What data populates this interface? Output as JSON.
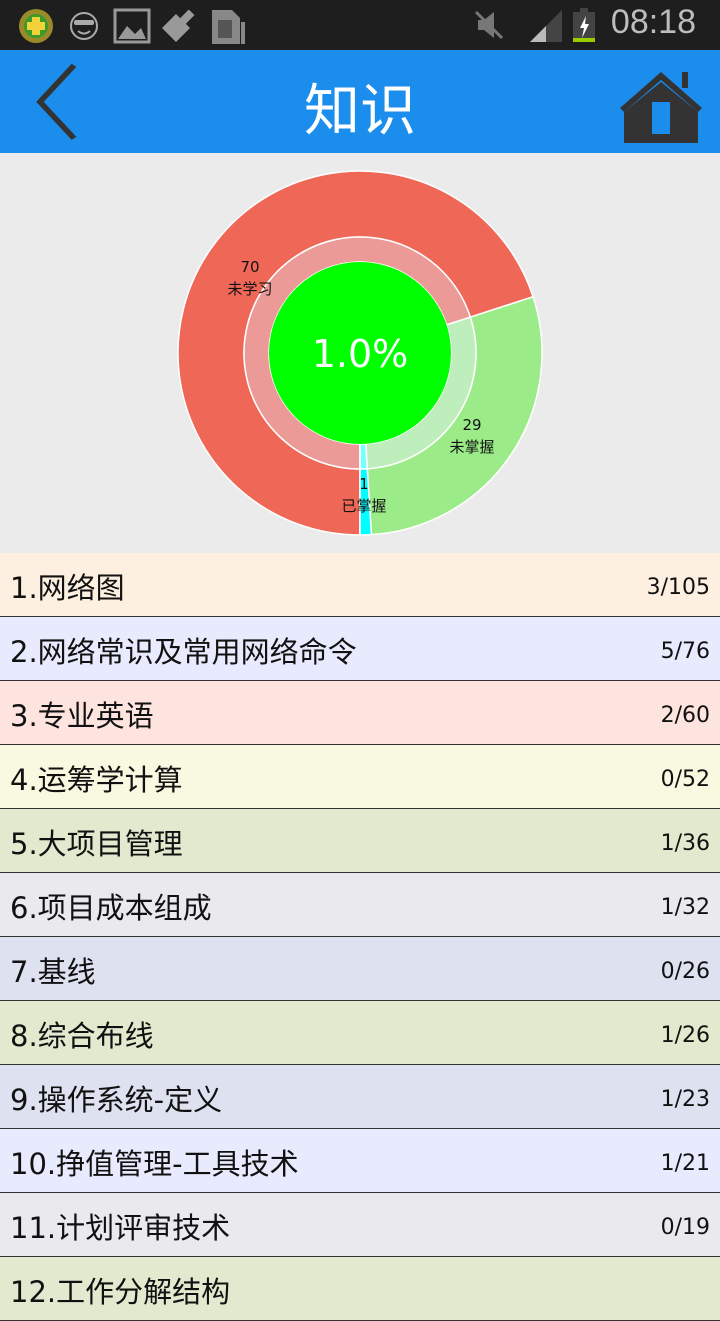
{
  "status_bar": {
    "time": "08:18",
    "icons": [
      "360-security-icon",
      "sunglasses-face-icon",
      "image-icon",
      "brush-icon",
      "sim-card-icon",
      "mute-icon",
      "signal-icon",
      "battery-charging-icon"
    ]
  },
  "header": {
    "title": "知识",
    "back_icon": "chevron-left-icon",
    "home_icon": "home-icon"
  },
  "chart": {
    "center_label": "1.0%",
    "segments": [
      {
        "value": 70,
        "label": "未学习",
        "color": "#ef6857",
        "inner_color": "#ec9a98"
      },
      {
        "value": 29,
        "label": "未掌握",
        "color": "#9bec89",
        "inner_color": "#bdeebb"
      },
      {
        "value": 1,
        "label": "已掌握",
        "color": "#00ffff",
        "inner_color": "#77ffff"
      }
    ],
    "center_color": "#00ff00"
  },
  "list": [
    {
      "name": "1.网络图",
      "count": "3/105",
      "bg": "#fef0e1"
    },
    {
      "name": "2.网络常识及常用网络命令",
      "count": "5/76",
      "bg": "#e8eafd"
    },
    {
      "name": "3.专业英语",
      "count": "2/60",
      "bg": "#fde4df"
    },
    {
      "name": "4.运筹学计算",
      "count": "0/52",
      "bg": "#f9f8e1"
    },
    {
      "name": "5.大项目管理",
      "count": "1/36",
      "bg": "#e1eacf"
    },
    {
      "name": "6.项目成本组成",
      "count": "1/32",
      "bg": "#eae9ee"
    },
    {
      "name": "7.基线",
      "count": "0/26",
      "bg": "#dde1f0"
    },
    {
      "name": "8.综合布线",
      "count": "1/26",
      "bg": "#e1eacf"
    },
    {
      "name": "9.操作系统-定义",
      "count": "1/23",
      "bg": "#dde1f0"
    },
    {
      "name": "10.挣值管理-工具技术",
      "count": "1/21",
      "bg": "#e8eafd"
    },
    {
      "name": "11.计划评审技术",
      "count": "0/19",
      "bg": "#eae9ee"
    },
    {
      "name": "12.工作分解结构",
      "count": "",
      "bg": "#e1eacf"
    }
  ]
}
